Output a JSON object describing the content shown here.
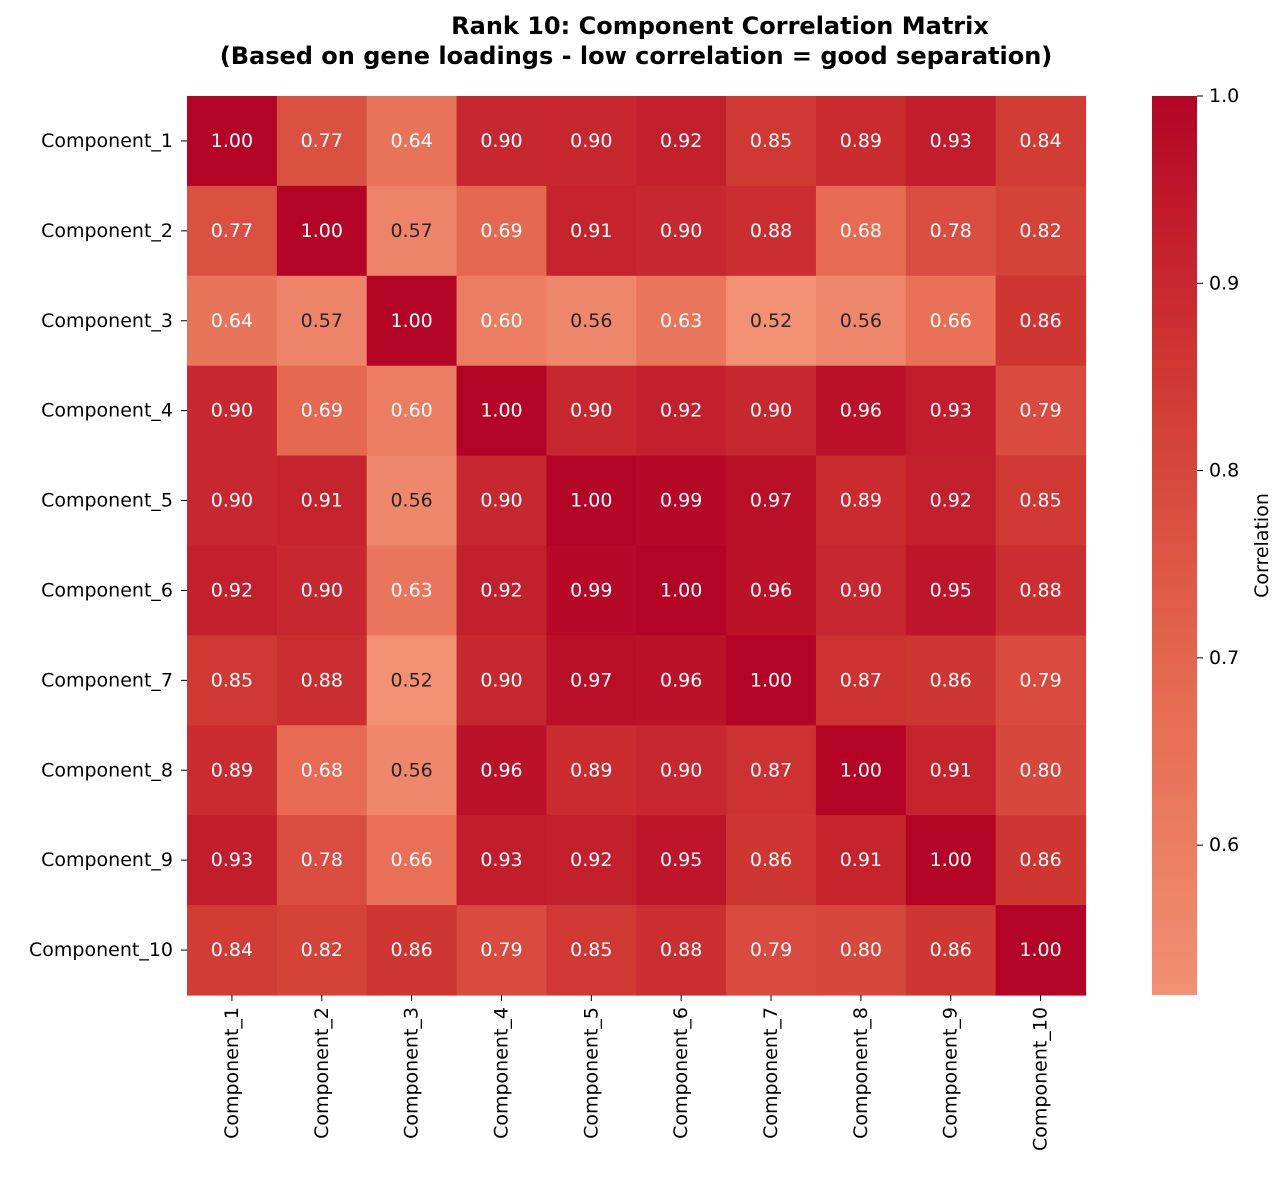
{
  "chart_data": {
    "type": "heatmap",
    "title_lines": [
      "Rank 10: Component Correlation Matrix",
      "(Based on gene loadings - low correlation = good separation)"
    ],
    "row_labels": [
      "Component_1",
      "Component_2",
      "Component_3",
      "Component_4",
      "Component_5",
      "Component_6",
      "Component_7",
      "Component_8",
      "Component_9",
      "Component_10"
    ],
    "col_labels": [
      "Component_1",
      "Component_2",
      "Component_3",
      "Component_4",
      "Component_5",
      "Component_6",
      "Component_7",
      "Component_8",
      "Component_9",
      "Component_10"
    ],
    "values": [
      [
        1.0,
        0.77,
        0.64,
        0.9,
        0.9,
        0.92,
        0.85,
        0.89,
        0.93,
        0.84
      ],
      [
        0.77,
        1.0,
        0.57,
        0.69,
        0.91,
        0.9,
        0.88,
        0.68,
        0.78,
        0.82
      ],
      [
        0.64,
        0.57,
        1.0,
        0.6,
        0.56,
        0.63,
        0.52,
        0.56,
        0.66,
        0.86
      ],
      [
        0.9,
        0.69,
        0.6,
        1.0,
        0.9,
        0.92,
        0.9,
        0.96,
        0.93,
        0.79
      ],
      [
        0.9,
        0.91,
        0.56,
        0.9,
        1.0,
        0.99,
        0.97,
        0.89,
        0.92,
        0.85
      ],
      [
        0.92,
        0.9,
        0.63,
        0.92,
        0.99,
        1.0,
        0.96,
        0.9,
        0.95,
        0.88
      ],
      [
        0.85,
        0.88,
        0.52,
        0.9,
        0.97,
        0.96,
        1.0,
        0.87,
        0.86,
        0.79
      ],
      [
        0.89,
        0.68,
        0.56,
        0.96,
        0.89,
        0.9,
        0.87,
        1.0,
        0.91,
        0.8
      ],
      [
        0.93,
        0.78,
        0.66,
        0.93,
        0.92,
        0.95,
        0.86,
        0.91,
        1.0,
        0.86
      ],
      [
        0.84,
        0.82,
        0.86,
        0.79,
        0.85,
        0.88,
        0.79,
        0.8,
        0.86,
        1.0
      ]
    ],
    "annotation_format": "2 decimals",
    "colorbar": {
      "label": "Correlation",
      "range": [
        0.52,
        1.0
      ],
      "ticks": [
        0.6,
        0.7,
        0.8,
        0.9,
        1.0
      ],
      "tick_labels": [
        "0.6",
        "0.7",
        "0.8",
        "0.9",
        "1.0"
      ]
    },
    "colormap": "coolwarm (upper half)",
    "grid": false
  }
}
